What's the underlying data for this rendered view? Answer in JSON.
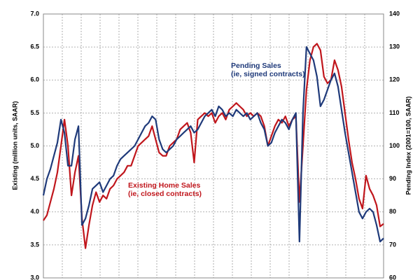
{
  "chart_data": {
    "type": "line",
    "y_label": "Existing (million units, SAAR)",
    "y2_label": "Pending Index (2001=100, SAAR)",
    "annotations": [
      {
        "lines": [
          "Pending Sales",
          "(ie, signed contracts)"
        ],
        "color": "#1f3a7a"
      },
      {
        "lines": [
          "Existing Home Sales",
          "(ie, closed contracts)"
        ],
        "color": "#c0161c"
      }
    ],
    "grid": true,
    "categories": [
      null,
      null,
      null,
      null,
      null,
      null,
      null,
      null,
      null,
      null,
      null,
      null,
      null,
      null,
      null,
      null,
      null,
      null,
      null,
      null,
      null,
      null,
      null,
      null,
      null,
      null,
      null,
      null,
      null,
      null,
      null,
      null,
      null,
      null,
      null,
      null,
      null,
      null,
      null,
      null,
      null,
      null,
      null,
      null,
      null,
      null,
      null,
      null,
      null,
      null,
      null,
      null,
      null,
      null,
      null,
      null,
      null,
      null,
      null,
      null,
      null,
      null,
      null,
      null,
      null,
      null,
      null,
      null,
      null,
      null,
      null,
      null,
      null,
      null,
      null,
      null,
      null,
      null,
      null,
      null,
      null,
      null,
      null,
      null,
      null,
      null,
      null,
      null,
      null,
      null,
      null,
      null,
      null,
      null,
      null,
      null,
      null,
      null
    ],
    "ylim": [
      3,
      7
    ],
    "yticks": [
      {
        "value": 3,
        "label": "3.0"
      },
      {
        "value": 3.5,
        "label": "3.5"
      },
      {
        "value": 4,
        "label": "4.0"
      },
      {
        "value": 4.5,
        "label": "4.5"
      },
      {
        "value": 5,
        "label": "5.0"
      },
      {
        "value": 5.5,
        "label": "5.5"
      },
      {
        "value": 6,
        "label": "6.0"
      },
      {
        "value": 6.5,
        "label": "6.5"
      },
      {
        "value": 7,
        "label": "7.0"
      }
    ],
    "y2lim": [
      60,
      140
    ],
    "y2ticks": [
      60,
      70,
      80,
      90,
      100,
      110,
      120,
      130,
      140
    ],
    "series": [
      {
        "name": "Existing Home Sales",
        "color": "#c0161c",
        "values": [
          3.87,
          3.95,
          4.15,
          4.35,
          4.6,
          5.0,
          5.4,
          5.0,
          4.25,
          4.6,
          4.85,
          3.9,
          3.45,
          3.8,
          4.1,
          4.3,
          4.15,
          4.25,
          4.2,
          4.35,
          4.4,
          4.5,
          4.55,
          4.6,
          4.7,
          4.7,
          4.85,
          5.0,
          5.05,
          5.1,
          5.15,
          5.3,
          5.1,
          4.9,
          4.85,
          4.85,
          5.0,
          5.05,
          5.1,
          5.25,
          5.3,
          5.35,
          5.2,
          4.75,
          5.4,
          5.45,
          5.5,
          5.45,
          5.5,
          5.35,
          5.45,
          5.5,
          5.4,
          5.55,
          5.6,
          5.65,
          5.6,
          5.55,
          5.45,
          5.5,
          5.45,
          5.5,
          5.45,
          5.3,
          5.0,
          5.15,
          5.3,
          5.4,
          5.35,
          5.45,
          5.3,
          5.4,
          5.45,
          4.15,
          5.0,
          5.85,
          6.3,
          6.5,
          6.55,
          6.45,
          6.05,
          5.95,
          6.0,
          6.3,
          6.15,
          5.9,
          5.5,
          5.1,
          4.75,
          4.5,
          4.2,
          4.05,
          4.55,
          4.35,
          4.25,
          4.1,
          3.78,
          3.82
        ]
      },
      {
        "name": "Pending Sales",
        "color": "#1f3a7a",
        "axis": "y2",
        "values": [
          85,
          90,
          93,
          97,
          101,
          108,
          104,
          94,
          94,
          102,
          106,
          76,
          78,
          82,
          87,
          88,
          89,
          86,
          88,
          90,
          91,
          94,
          96,
          97,
          98,
          99,
          100,
          102,
          104,
          106,
          107,
          109,
          108,
          102,
          99,
          98,
          99,
          100,
          102,
          103,
          104,
          105,
          106,
          104,
          105,
          107,
          109,
          110,
          111,
          109,
          112,
          111,
          109,
          110,
          109,
          111,
          110,
          109,
          110,
          108,
          109,
          110,
          107,
          105,
          100,
          101,
          104,
          106,
          108,
          107,
          105,
          108,
          110,
          71,
          110,
          130,
          128,
          126,
          121,
          112,
          114,
          117,
          120,
          122,
          118,
          111,
          104,
          98,
          92,
          86,
          80,
          78,
          80,
          81,
          80,
          76,
          71,
          72
        ]
      }
    ]
  }
}
